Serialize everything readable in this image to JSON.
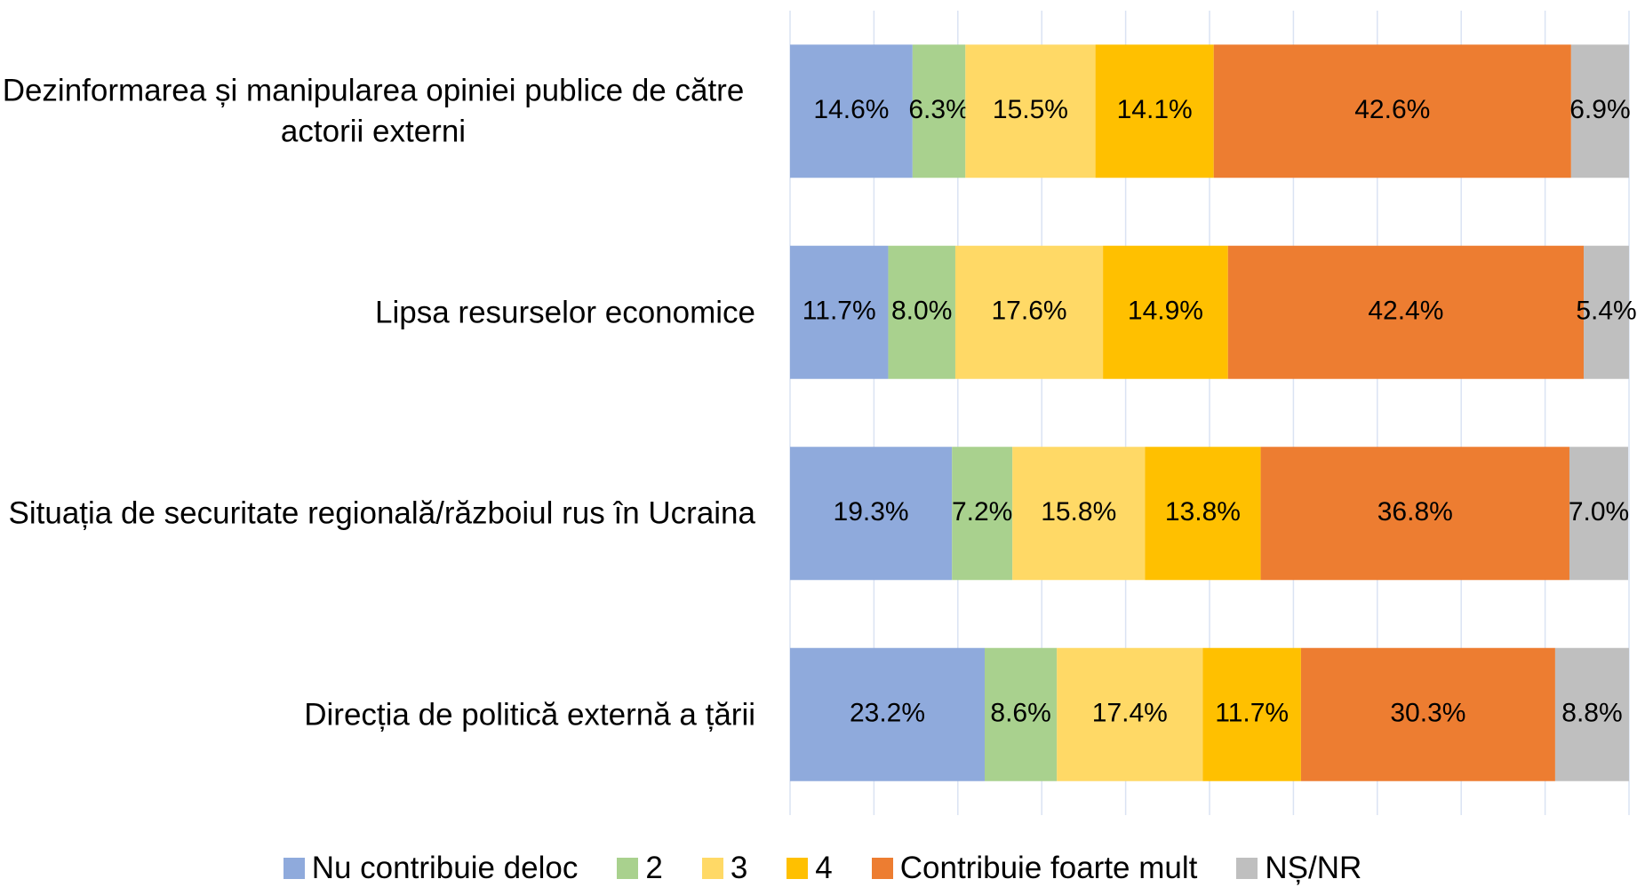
{
  "chart_data": {
    "type": "stacked-barh",
    "categories": [
      "Dezinformarea și manipularea opiniei publice de către actorii externi",
      "Lipsa resurselor economice",
      "Situația de securitate regională/războiul rus în Ucraina",
      "Direcția de politică externă a țării"
    ],
    "series": [
      {
        "name": "Nu contribuie deloc",
        "color": "#8faadc",
        "values": [
          14.6,
          11.7,
          19.3,
          23.2
        ],
        "value_labels": [
          "14.6%",
          "11.7%",
          "19.3%",
          "23.2%"
        ]
      },
      {
        "name": "2",
        "color": "#a9d18e",
        "values": [
          6.3,
          8.0,
          7.2,
          8.6
        ],
        "value_labels": [
          "6.3%",
          "8.0%",
          "7.2%",
          "8.6%"
        ]
      },
      {
        "name": "3",
        "color": "#ffd966",
        "values": [
          15.5,
          17.6,
          15.8,
          17.4
        ],
        "value_labels": [
          "15.5%",
          "17.6%",
          "15.8%",
          "17.4%"
        ]
      },
      {
        "name": "4",
        "color": "#ffc000",
        "values": [
          14.1,
          14.9,
          13.8,
          11.7
        ],
        "value_labels": [
          "14.1%",
          "14.9%",
          "13.8%",
          "11.7%"
        ]
      },
      {
        "name": "Contribuie foarte mult",
        "color": "#ed7d31",
        "values": [
          42.6,
          42.4,
          36.8,
          30.3
        ],
        "value_labels": [
          "42.6%",
          "42.4%",
          "36.8%",
          "30.3%"
        ]
      },
      {
        "name": "NȘ/NR",
        "color": "#bfbfbf",
        "values": [
          6.9,
          5.4,
          7.0,
          8.8
        ],
        "value_labels": [
          "6.9%",
          "5.4%",
          "7.0%",
          "8.8%"
        ]
      }
    ],
    "xlim": [
      0,
      100
    ],
    "xticks": [
      0,
      10,
      20,
      30,
      40,
      50,
      60,
      70,
      80,
      90,
      100
    ],
    "grid": true,
    "legend": "bottom"
  }
}
